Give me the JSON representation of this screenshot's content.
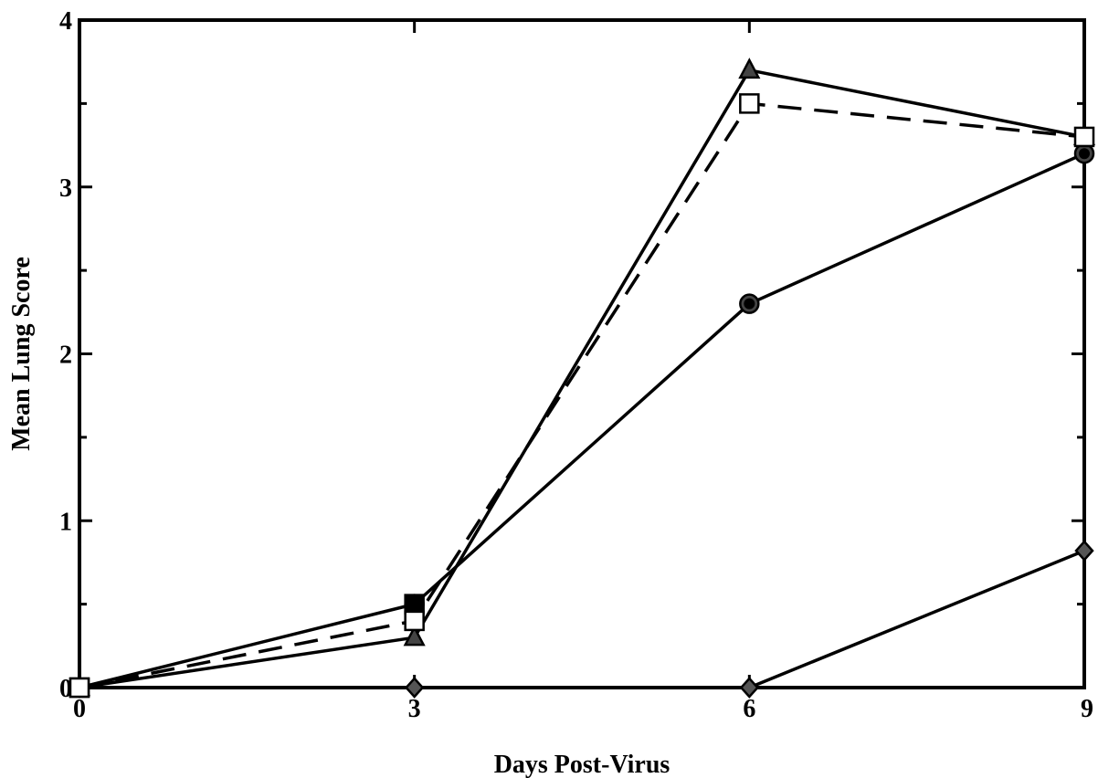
{
  "chart_data": {
    "type": "line",
    "title": "",
    "xlabel": "Days Post-Virus",
    "ylabel": "Mean Lung Score",
    "x": [
      0,
      3,
      6,
      9
    ],
    "xticks": [
      0,
      3,
      6,
      9
    ],
    "xlim": [
      0,
      9
    ],
    "yticks": [
      0,
      1,
      2,
      3,
      4
    ],
    "ylim": [
      0,
      4
    ],
    "grid": false,
    "legend": "none",
    "series": [
      {
        "marker": "filled-square",
        "line": "solid",
        "color": "#000000",
        "points": [
          [
            0,
            0
          ],
          [
            3,
            0.5
          ]
        ]
      },
      {
        "marker": "filled-triangle",
        "line": "solid",
        "color": "#000000",
        "points": [
          [
            0,
            0
          ],
          [
            3,
            0.3
          ],
          [
            6,
            3.7
          ],
          [
            9,
            3.3
          ]
        ]
      },
      {
        "marker": "open-square",
        "line": "dashed",
        "color": "#000000",
        "points": [
          [
            0,
            0
          ],
          [
            3,
            0.4
          ],
          [
            6,
            3.5
          ],
          [
            9,
            3.3
          ]
        ]
      },
      {
        "marker": "filled-circle",
        "line": "solid",
        "color": "#000000",
        "points": [
          [
            3,
            0.5
          ],
          [
            6,
            2.3
          ],
          [
            9,
            3.2
          ]
        ]
      },
      {
        "marker": "filled-diamond",
        "line": "solid",
        "color": "#000000",
        "points": [
          [
            0,
            0
          ],
          [
            3,
            0
          ],
          [
            6,
            0
          ],
          [
            9,
            0.82
          ]
        ]
      }
    ]
  }
}
